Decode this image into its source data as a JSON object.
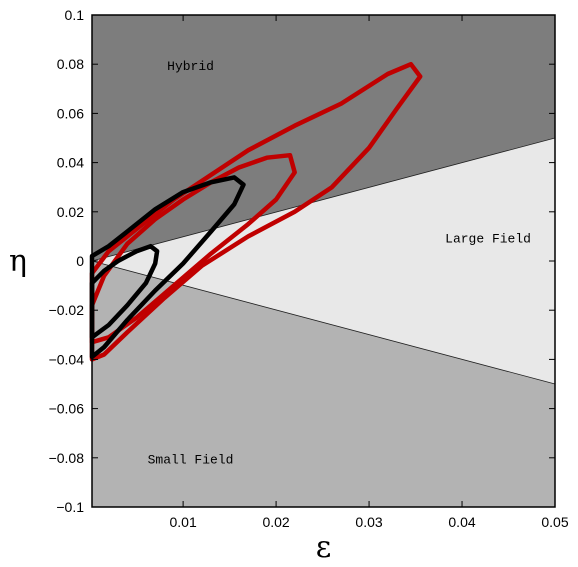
{
  "chart_data": {
    "type": "contour",
    "title": "",
    "xlabel": "ε",
    "ylabel": "η",
    "xlim": [
      0.0002,
      0.05
    ],
    "ylim": [
      -0.1,
      0.1
    ],
    "x_ticks": [
      {
        "value": 0.01,
        "label": "0.01"
      },
      {
        "value": 0.02,
        "label": "0.02"
      },
      {
        "value": 0.03,
        "label": "0.03"
      },
      {
        "value": 0.04,
        "label": "0.04"
      },
      {
        "value": 0.05,
        "label": "0.05"
      }
    ],
    "y_ticks": [
      {
        "value": -0.1,
        "label": "−0.1"
      },
      {
        "value": -0.08,
        "label": "−0.08"
      },
      {
        "value": -0.06,
        "label": "−0.06"
      },
      {
        "value": -0.04,
        "label": "−0.04"
      },
      {
        "value": -0.02,
        "label": "−0.02"
      },
      {
        "value": 0,
        "label": "0"
      },
      {
        "value": 0.02,
        "label": "0.02"
      },
      {
        "value": 0.04,
        "label": "0.04"
      },
      {
        "value": 0.06,
        "label": "0.06"
      },
      {
        "value": 0.08,
        "label": "0.08"
      },
      {
        "value": 0.1,
        "label": "0.1"
      }
    ],
    "regions": [
      {
        "label": "Hybrid",
        "color": "#7d7d7d",
        "label_at": [
          0.0108,
          0.079
        ]
      },
      {
        "label": "Large Field",
        "color": "#e8e8e8",
        "label_at": [
          0.0428,
          0.009
        ]
      },
      {
        "label": "Small Field",
        "color": "#b3b3b3",
        "label_at": [
          0.0108,
          -0.081
        ]
      }
    ],
    "boundary_lines": [
      [
        [
          0.0002,
          0.0
        ],
        [
          0.05,
          0.05
        ]
      ],
      [
        [
          0.0002,
          0.0
        ],
        [
          0.05,
          -0.05
        ]
      ]
    ],
    "contours": [
      {
        "color": "#c00000",
        "level": "outer",
        "points": [
          [
            0.0002,
            -0.04
          ],
          [
            0.0015,
            -0.038
          ],
          [
            0.004,
            -0.029
          ],
          [
            0.008,
            -0.015
          ],
          [
            0.012,
            -0.002
          ],
          [
            0.017,
            0.01
          ],
          [
            0.022,
            0.02
          ],
          [
            0.026,
            0.03
          ],
          [
            0.03,
            0.046
          ],
          [
            0.033,
            0.062
          ],
          [
            0.0355,
            0.075
          ],
          [
            0.0345,
            0.08
          ],
          [
            0.032,
            0.076
          ],
          [
            0.027,
            0.064
          ],
          [
            0.022,
            0.055
          ],
          [
            0.017,
            0.045
          ],
          [
            0.013,
            0.035
          ],
          [
            0.009,
            0.025
          ],
          [
            0.005,
            0.013
          ],
          [
            0.002,
            0.004
          ],
          [
            0.0002,
            -0.005
          ]
        ]
      },
      {
        "color": "#c00000",
        "level": "inner",
        "points": [
          [
            0.0002,
            -0.033
          ],
          [
            0.002,
            -0.031
          ],
          [
            0.005,
            -0.023
          ],
          [
            0.009,
            -0.01
          ],
          [
            0.013,
            0.003
          ],
          [
            0.017,
            0.015
          ],
          [
            0.02,
            0.025
          ],
          [
            0.022,
            0.036
          ],
          [
            0.0215,
            0.043
          ],
          [
            0.019,
            0.042
          ],
          [
            0.016,
            0.038
          ],
          [
            0.013,
            0.032
          ],
          [
            0.01,
            0.025
          ],
          [
            0.007,
            0.017
          ],
          [
            0.004,
            0.007
          ],
          [
            0.0015,
            -0.006
          ],
          [
            0.0002,
            -0.018
          ]
        ]
      },
      {
        "color": "#000000",
        "level": "outer",
        "points": [
          [
            0.0002,
            -0.039
          ],
          [
            0.0015,
            -0.035
          ],
          [
            0.004,
            -0.024
          ],
          [
            0.007,
            -0.012
          ],
          [
            0.01,
            -0.001
          ],
          [
            0.013,
            0.012
          ],
          [
            0.0155,
            0.023
          ],
          [
            0.0165,
            0.031
          ],
          [
            0.0155,
            0.034
          ],
          [
            0.013,
            0.032
          ],
          [
            0.01,
            0.028
          ],
          [
            0.007,
            0.021
          ],
          [
            0.004,
            0.012
          ],
          [
            0.002,
            0.006
          ],
          [
            0.0002,
            0.002
          ]
        ]
      },
      {
        "color": "#000000",
        "level": "inner",
        "points": [
          [
            0.0002,
            -0.031
          ],
          [
            0.002,
            -0.026
          ],
          [
            0.004,
            -0.018
          ],
          [
            0.006,
            -0.009
          ],
          [
            0.007,
            -0.001
          ],
          [
            0.0072,
            0.004
          ],
          [
            0.0065,
            0.006
          ],
          [
            0.005,
            0.004
          ],
          [
            0.003,
            0.0
          ],
          [
            0.0015,
            -0.004
          ],
          [
            0.0002,
            -0.009
          ]
        ]
      }
    ]
  }
}
